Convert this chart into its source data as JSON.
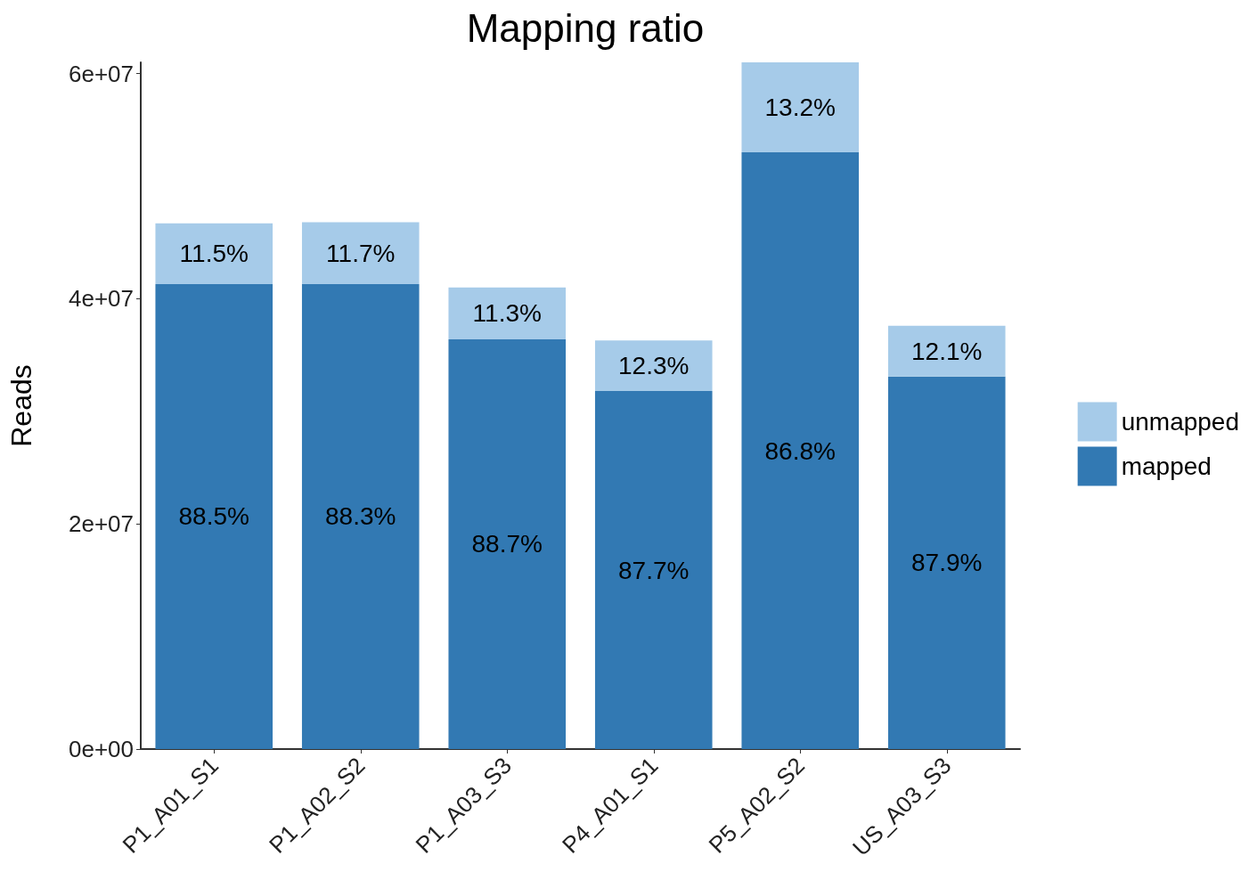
{
  "chart_data": {
    "type": "bar",
    "title": "Mapping ratio",
    "ylabel": "Reads",
    "stacked": true,
    "legend": "right",
    "grid": false,
    "categories": [
      "P1_A01_S1",
      "P1_A02_S2",
      "P1_A03_S3",
      "P4_A01_S1",
      "P5_A02_S2",
      "US_A03_S3"
    ],
    "ylim": [
      0,
      61000000
    ],
    "yticks": [
      {
        "value": 0,
        "label": "0e+00"
      },
      {
        "value": 20000000,
        "label": "2e+07"
      },
      {
        "value": 40000000,
        "label": "4e+07"
      },
      {
        "value": 60000000,
        "label": "6e+07"
      }
    ],
    "series": [
      {
        "name": "mapped",
        "color": "#3279b3",
        "values": [
          41300000,
          41300000,
          36400000,
          31800000,
          53000000,
          33100000
        ]
      },
      {
        "name": "unmapped",
        "color": "#a6cbe9",
        "values": [
          5400000,
          5500000,
          4600000,
          4500000,
          8100000,
          4500000
        ]
      }
    ],
    "annotations": [
      "88.5%",
      "88.3%",
      "88.7%",
      "87.7%",
      "86.8%",
      "87.9%",
      "11.5%",
      "11.7%",
      "11.3%",
      "12.3%",
      "13.2%",
      "12.1%"
    ]
  }
}
